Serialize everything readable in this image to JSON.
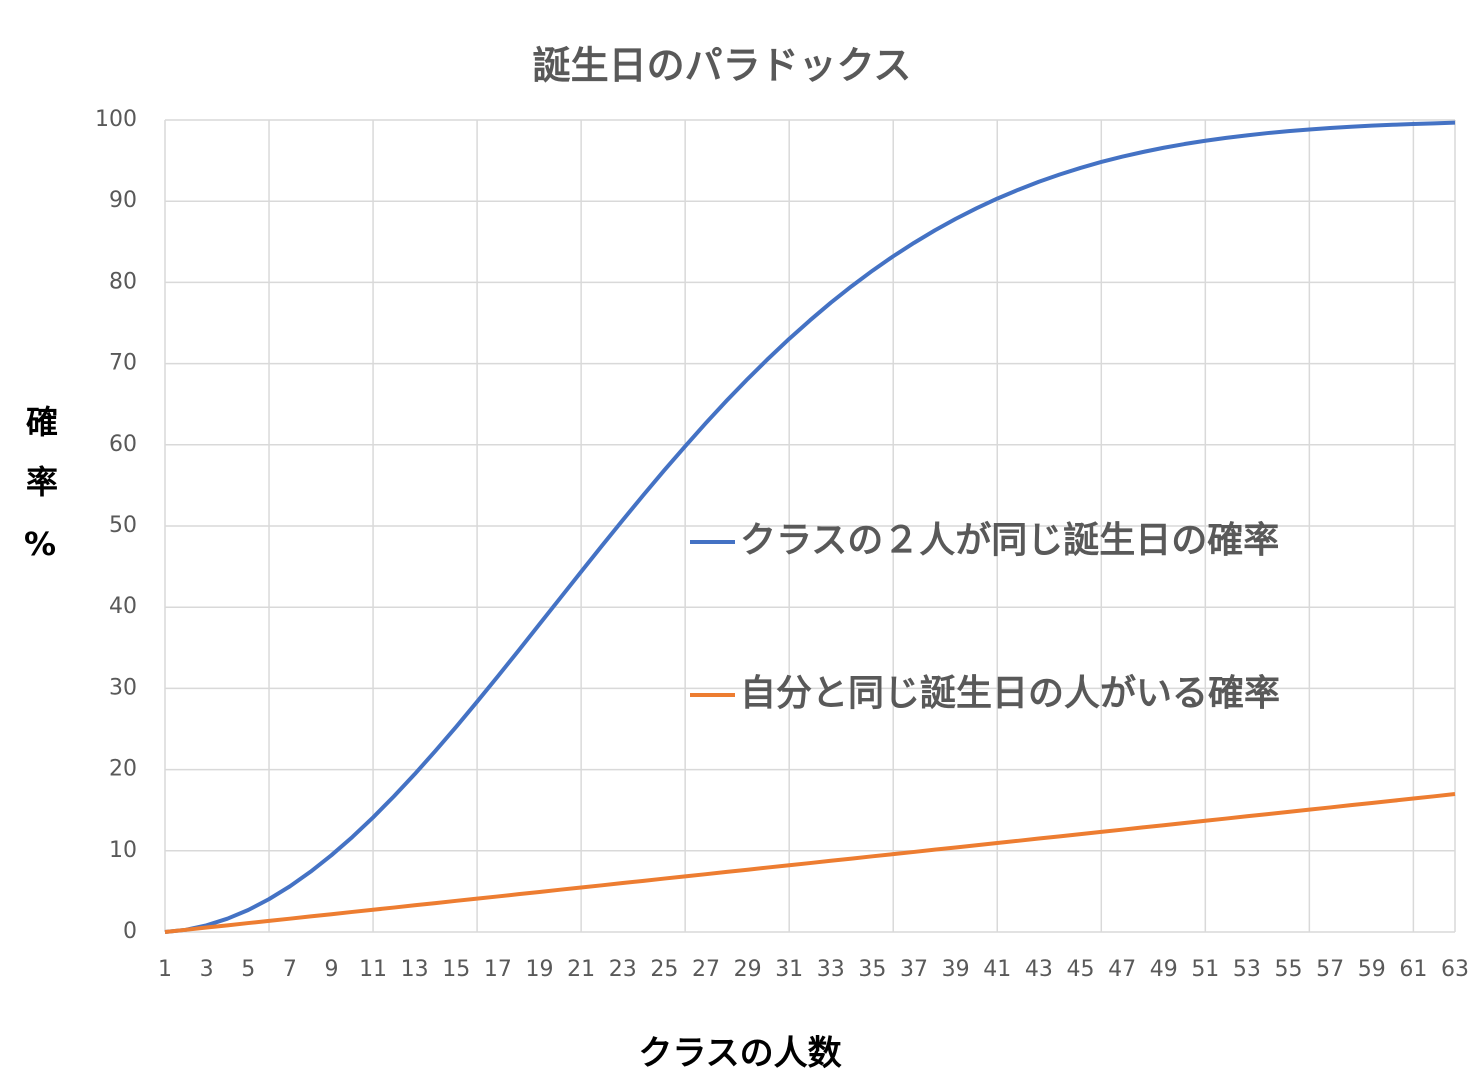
{
  "chart_data": {
    "type": "line",
    "title": "誕生日のパラドックス",
    "x_label": "クラスの人数",
    "y_label": "確率%",
    "x": [
      1,
      2,
      3,
      4,
      5,
      6,
      7,
      8,
      9,
      10,
      11,
      12,
      13,
      14,
      15,
      16,
      17,
      18,
      19,
      20,
      21,
      22,
      23,
      24,
      25,
      26,
      27,
      28,
      29,
      30,
      31,
      32,
      33,
      34,
      35,
      36,
      37,
      38,
      39,
      40,
      41,
      42,
      43,
      44,
      45,
      46,
      47,
      48,
      49,
      50,
      51,
      52,
      53,
      54,
      55,
      56,
      57,
      58,
      59,
      60,
      61,
      62,
      63
    ],
    "xlim": [
      1,
      63
    ],
    "xticks": [
      1,
      3,
      5,
      7,
      9,
      11,
      13,
      15,
      17,
      19,
      21,
      23,
      25,
      27,
      29,
      31,
      33,
      35,
      37,
      39,
      41,
      43,
      45,
      47,
      49,
      51,
      53,
      55,
      57,
      59,
      61,
      63
    ],
    "ylim": [
      0,
      100
    ],
    "yticks": [
      0,
      10,
      20,
      30,
      40,
      50,
      60,
      70,
      80,
      90,
      100
    ],
    "grid": true,
    "legend": "right",
    "series": [
      {
        "name": "クラスの２人が同じ誕生日の確率",
        "color": "#4472c4",
        "values": [
          0,
          0.27,
          0.82,
          1.64,
          2.71,
          4.05,
          5.62,
          7.43,
          9.46,
          11.69,
          14.11,
          16.7,
          19.44,
          22.31,
          25.29,
          28.36,
          31.5,
          34.69,
          37.91,
          41.14,
          44.37,
          47.57,
          50.73,
          53.83,
          56.87,
          59.82,
          62.69,
          65.45,
          68.1,
          70.63,
          73.05,
          75.33,
          77.5,
          79.53,
          81.44,
          83.22,
          84.87,
          86.41,
          87.82,
          89.12,
          90.32,
          91.4,
          92.39,
          93.29,
          94.1,
          94.83,
          95.48,
          96.06,
          96.58,
          97.04,
          97.44,
          97.8,
          98.11,
          98.39,
          98.63,
          98.83,
          99.01,
          99.17,
          99.3,
          99.41,
          99.51,
          99.59,
          99.67
        ]
      },
      {
        "name": "自分と同じ誕生日の人がいる確率",
        "color": "#ed7d31",
        "values": [
          0,
          0.27,
          0.55,
          0.82,
          1.1,
          1.37,
          1.64,
          1.92,
          2.19,
          2.47,
          2.74,
          3.01,
          3.29,
          3.56,
          3.84,
          4.11,
          4.38,
          4.66,
          4.93,
          5.21,
          5.48,
          5.75,
          6.03,
          6.3,
          6.58,
          6.85,
          7.12,
          7.4,
          7.67,
          7.95,
          8.22,
          8.49,
          8.77,
          9.04,
          9.32,
          9.59,
          9.86,
          10.14,
          10.41,
          10.68,
          10.96,
          11.23,
          11.51,
          11.78,
          12.05,
          12.33,
          12.6,
          12.88,
          13.15,
          13.42,
          13.7,
          13.97,
          14.25,
          14.52,
          14.79,
          15.07,
          15.34,
          15.62,
          15.89,
          16.16,
          16.44,
          16.71,
          16.99
        ]
      }
    ]
  }
}
